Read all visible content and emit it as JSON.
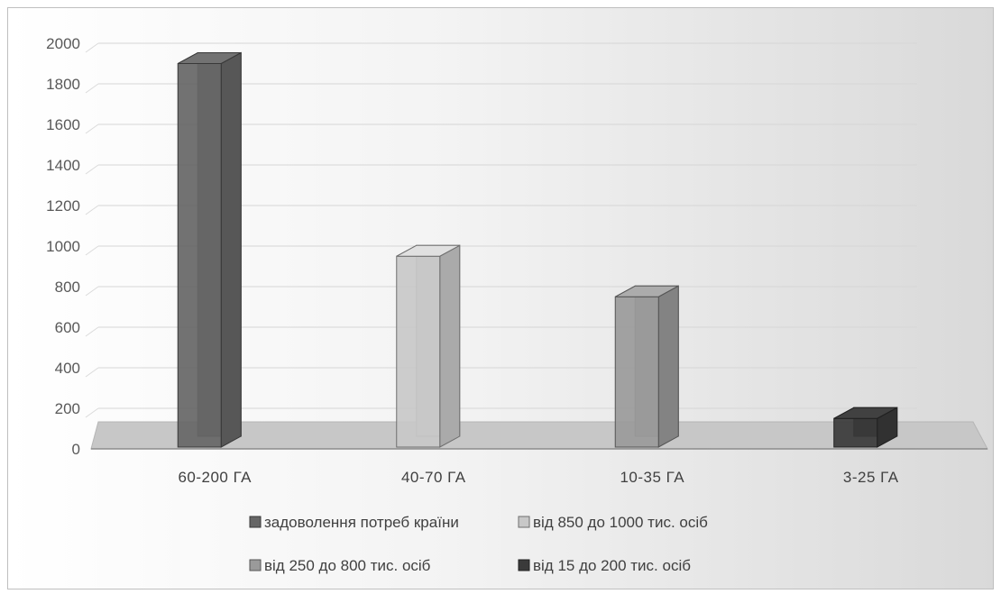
{
  "chart_data": {
    "type": "bar",
    "style": "3d-column",
    "title": "",
    "xlabel": "",
    "ylabel": "",
    "ylim": [
      0,
      2000
    ],
    "yticks": [
      0,
      200,
      400,
      600,
      800,
      1000,
      1200,
      1400,
      1600,
      1800,
      2000
    ],
    "grid": true,
    "legend_position": "bottom",
    "categories": [
      "60-200 ГА",
      "40-70 ГА",
      "10-35 ГА",
      "3-25 ГА"
    ],
    "series": [
      {
        "name": "задоволення потреб країни",
        "values": [
          1900,
          0,
          0,
          0
        ],
        "color": "#666666"
      },
      {
        "name": "від 850 до 1000 тис. осіб",
        "values": [
          0,
          950,
          0,
          0
        ],
        "color": "#c8c8c8"
      },
      {
        "name": "від 250 до 800 тис. осіб",
        "values": [
          0,
          0,
          750,
          0
        ],
        "color": "#9a9a9a"
      },
      {
        "name": "від 15 до 200 тис. осіб",
        "values": [
          0,
          0,
          0,
          150
        ],
        "color": "#3a3a3a"
      }
    ]
  }
}
